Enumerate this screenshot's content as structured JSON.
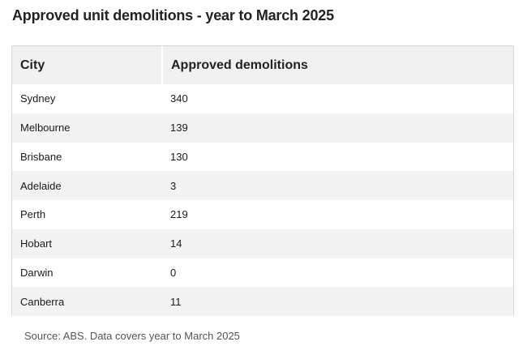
{
  "chart_data": {
    "type": "table",
    "title": "Approved unit demolitions - year to March 2025",
    "columns": [
      "City",
      "Approved demolitions"
    ],
    "rows": [
      {
        "city": "Sydney",
        "value": 340
      },
      {
        "city": "Melbourne",
        "value": 139
      },
      {
        "city": "Brisbane",
        "value": 130
      },
      {
        "city": "Adelaide",
        "value": 3
      },
      {
        "city": "Perth",
        "value": 219
      },
      {
        "city": "Hobart",
        "value": 14
      },
      {
        "city": "Darwin",
        "value": 0
      },
      {
        "city": "Canberra",
        "value": 11
      }
    ],
    "source": "Source: ABS. Data covers year to March 2025"
  },
  "colors": {
    "header_bg": "#f1f1f1",
    "stripe_bg": "#f3f3f3",
    "border": "#d6d6d6"
  }
}
